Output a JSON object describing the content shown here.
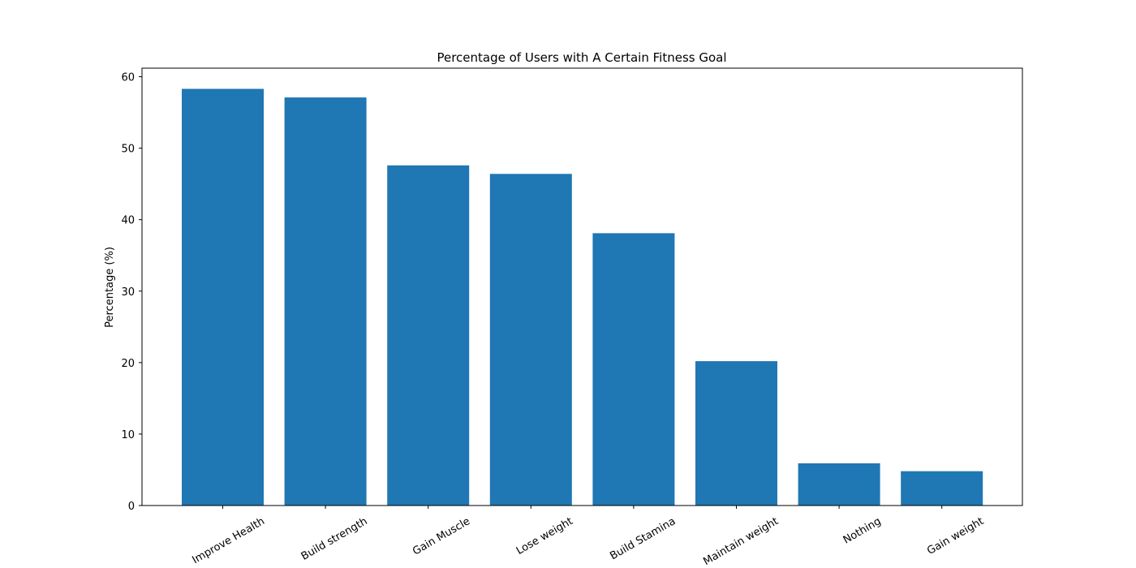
{
  "chart_data": {
    "type": "bar",
    "title": "Percentage of Users with A Certain Fitness Goal",
    "xlabel": "",
    "ylabel": "Percentage (%)",
    "categories": [
      "Improve Health",
      "Build strength",
      "Gain Muscle",
      "Lose weight",
      "Build Stamina",
      "Maintain weight",
      "Nothing",
      "Gain weight"
    ],
    "values": [
      58.3,
      57.1,
      47.6,
      46.4,
      38.1,
      20.2,
      5.9,
      4.8
    ],
    "ylim": [
      0,
      61.2
    ],
    "yticks": [
      0,
      10,
      20,
      30,
      40,
      50,
      60
    ],
    "bar_color": "#1f77b4",
    "grid": false,
    "legend": "none"
  }
}
